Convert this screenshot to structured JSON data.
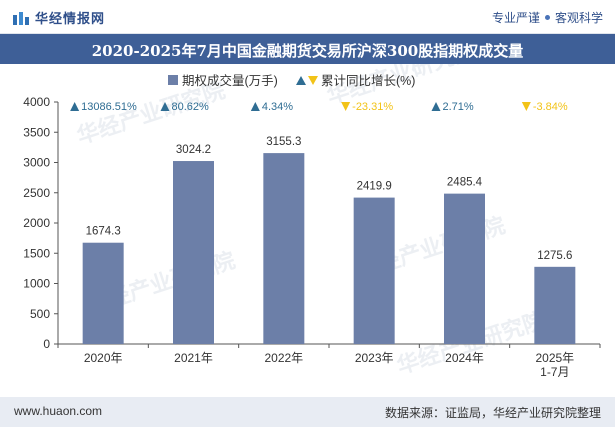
{
  "header": {
    "brand": "华经情报网",
    "slogan_left": "专业严谨",
    "slogan_right": "客观科学"
  },
  "title": "2020-2025年7月中国金融期货交易所沪深300股指期权成交量",
  "footer": {
    "url": "www.huaon.com",
    "source": "数据来源：证监局，华经产业研究院整理"
  },
  "watermark": "华经产业研究院",
  "colors": {
    "bar": "#6c7fa8",
    "up": "#2f6d93",
    "down": "#f2c318",
    "header_bg": "#3e5f97"
  },
  "chart_data": {
    "type": "bar",
    "categories": [
      "2020年",
      "2021年",
      "2022年",
      "2023年",
      "2024年",
      "2025年\n1-7月"
    ],
    "series": [
      {
        "name": "期权成交量(万手)",
        "values": [
          1674.3,
          3024.2,
          3155.3,
          2419.9,
          2485.4,
          1275.6
        ]
      }
    ],
    "value_labels": [
      "1674.3",
      "3024.2",
      "3155.3",
      "2419.9",
      "2485.4",
      "1275.6"
    ],
    "changes": [
      {
        "text": "13086.51%",
        "direction": "up"
      },
      {
        "text": "80.62%",
        "direction": "up"
      },
      {
        "text": "4.34%",
        "direction": "up"
      },
      {
        "text": "-23.31%",
        "direction": "down"
      },
      {
        "text": "2.71%",
        "direction": "up"
      },
      {
        "text": "-3.84%",
        "direction": "down"
      }
    ],
    "legend": [
      "期权成交量(万手)",
      "累计同比增长(%)"
    ],
    "ylim": [
      0,
      4000
    ],
    "yticks": [
      0,
      500,
      1000,
      1500,
      2000,
      2500,
      3000,
      3500,
      4000
    ],
    "grid": false,
    "legend_position": "top-center"
  }
}
